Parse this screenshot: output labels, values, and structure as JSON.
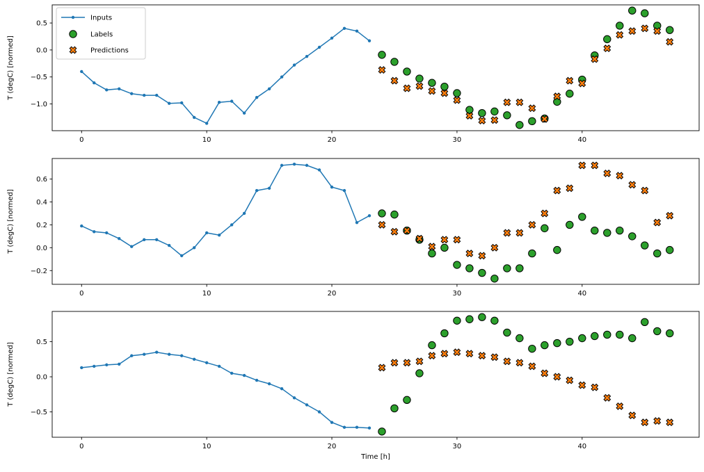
{
  "figure": {
    "xlabel": "Time [h]",
    "ylabel": "T (degC) [normed]",
    "legend": {
      "items": [
        {
          "label": "Inputs",
          "marker": "line-dot",
          "color": "#1f77b4"
        },
        {
          "label": "Labels",
          "marker": "circle",
          "color": "#2ca02c"
        },
        {
          "label": "Predictions",
          "marker": "x",
          "color": "#ff7f0e"
        }
      ]
    },
    "colors": {
      "inputs": "#1f77b4",
      "labels": "#2ca02c",
      "predictions": "#ff7f0e",
      "marker_edge": "#000000",
      "legend_border": "#cccccc"
    }
  },
  "chart_data": [
    {
      "type": "line",
      "title": "",
      "ylabel": "T (degC) [normed]",
      "xlabel": "",
      "xlim": [
        -2.35,
        49.35
      ],
      "xticks": [
        0,
        10,
        20,
        30,
        40
      ],
      "xtick_labels": [
        "0",
        "10",
        "20",
        "30",
        "40"
      ],
      "yticks": [
        0.5,
        0.0,
        -0.5,
        -1.0
      ],
      "ytick_labels": [
        "0.5",
        "0.0",
        "−0.5",
        "−1.0"
      ],
      "series": [
        {
          "name": "Inputs",
          "type": "line",
          "color": "#1f77b4",
          "x": [
            0,
            1,
            2,
            3,
            4,
            5,
            6,
            7,
            8,
            9,
            10,
            11,
            12,
            13,
            14,
            15,
            16,
            17,
            18,
            19,
            20,
            21,
            22,
            23
          ],
          "y": [
            -0.4,
            -0.61,
            -0.74,
            -0.72,
            -0.81,
            -0.84,
            -0.84,
            -0.99,
            -0.98,
            -1.25,
            -1.36,
            -0.97,
            -0.95,
            -1.17,
            -0.88,
            -0.72,
            -0.5,
            -0.28,
            -0.12,
            0.05,
            0.22,
            0.4,
            0.35,
            0.17
          ]
        },
        {
          "name": "Labels",
          "type": "scatter_circle",
          "color": "#2ca02c",
          "x": [
            24,
            25,
            26,
            27,
            28,
            29,
            30,
            31,
            32,
            33,
            34,
            35,
            36,
            37,
            38,
            39,
            40,
            41,
            42,
            43,
            44,
            45,
            46,
            47
          ],
          "y": [
            -0.09,
            -0.22,
            -0.4,
            -0.53,
            -0.61,
            -0.68,
            -0.8,
            -1.11,
            -1.17,
            -1.14,
            -1.21,
            -1.39,
            -1.32,
            -1.27,
            -0.96,
            -0.81,
            -0.55,
            -0.1,
            0.2,
            0.45,
            0.73,
            0.68,
            0.45,
            0.37
          ]
        },
        {
          "name": "Predictions",
          "type": "scatter_x",
          "color": "#ff7f0e",
          "x": [
            24,
            25,
            26,
            27,
            28,
            29,
            30,
            31,
            32,
            33,
            34,
            35,
            36,
            37,
            38,
            39,
            40,
            41,
            42,
            43,
            44,
            45,
            46,
            47
          ],
          "y": [
            -0.37,
            -0.57,
            -0.71,
            -0.67,
            -0.76,
            -0.8,
            -0.93,
            -1.22,
            -1.31,
            -1.3,
            -0.97,
            -0.97,
            -1.08,
            -1.28,
            -0.86,
            -0.57,
            -0.62,
            -0.17,
            0.03,
            0.28,
            0.35,
            0.4,
            0.35,
            0.15
          ]
        }
      ]
    },
    {
      "type": "line",
      "title": "",
      "ylabel": "T (degC) [normed]",
      "xlabel": "",
      "xlim": [
        -2.35,
        49.35
      ],
      "xticks": [
        0,
        10,
        20,
        30,
        40
      ],
      "xtick_labels": [
        "0",
        "10",
        "20",
        "30",
        "40"
      ],
      "yticks": [
        0.6,
        0.4,
        0.2,
        0.0,
        -0.2
      ],
      "ytick_labels": [
        "0.6",
        "0.4",
        "0.2",
        "0.0",
        "−0.2"
      ],
      "series": [
        {
          "name": "Inputs",
          "type": "line",
          "color": "#1f77b4",
          "x": [
            0,
            1,
            2,
            3,
            4,
            5,
            6,
            7,
            8,
            9,
            10,
            11,
            12,
            13,
            14,
            15,
            16,
            17,
            18,
            19,
            20,
            21,
            22,
            23
          ],
          "y": [
            0.19,
            0.14,
            0.13,
            0.08,
            0.01,
            0.07,
            0.07,
            0.02,
            -0.07,
            0.0,
            0.13,
            0.11,
            0.2,
            0.3,
            0.5,
            0.52,
            0.72,
            0.73,
            0.72,
            0.68,
            0.53,
            0.5,
            0.22,
            0.28
          ]
        },
        {
          "name": "Labels",
          "type": "scatter_circle",
          "color": "#2ca02c",
          "x": [
            24,
            25,
            26,
            27,
            28,
            29,
            30,
            31,
            32,
            33,
            34,
            35,
            36,
            37,
            38,
            39,
            40,
            41,
            42,
            43,
            44,
            45,
            46,
            47
          ],
          "y": [
            0.3,
            0.29,
            0.15,
            0.07,
            -0.05,
            0.0,
            -0.15,
            -0.18,
            -0.22,
            -0.27,
            -0.18,
            -0.18,
            -0.05,
            0.17,
            -0.02,
            0.2,
            0.27,
            0.15,
            0.13,
            0.15,
            0.1,
            0.02,
            -0.05,
            -0.02
          ]
        },
        {
          "name": "Predictions",
          "type": "scatter_x",
          "color": "#ff7f0e",
          "x": [
            24,
            25,
            26,
            27,
            28,
            29,
            30,
            31,
            32,
            33,
            34,
            35,
            36,
            37,
            38,
            39,
            40,
            41,
            42,
            43,
            44,
            45,
            46,
            47
          ],
          "y": [
            0.2,
            0.14,
            0.15,
            0.08,
            0.01,
            0.07,
            0.07,
            -0.05,
            -0.07,
            0.0,
            0.13,
            0.13,
            0.2,
            0.3,
            0.5,
            0.52,
            0.72,
            0.72,
            0.65,
            0.63,
            0.55,
            0.5,
            0.22,
            0.28
          ]
        }
      ]
    },
    {
      "type": "line",
      "title": "",
      "ylabel": "T (degC) [normed]",
      "xlabel": "Time [h]",
      "xlim": [
        -2.35,
        49.35
      ],
      "xticks": [
        0,
        10,
        20,
        30,
        40
      ],
      "xtick_labels": [
        "0",
        "10",
        "20",
        "30",
        "40"
      ],
      "yticks": [
        0.5,
        0.0,
        -0.5
      ],
      "ytick_labels": [
        "0.5",
        "0.0",
        "−0.5"
      ],
      "series": [
        {
          "name": "Inputs",
          "type": "line",
          "color": "#1f77b4",
          "x": [
            0,
            1,
            2,
            3,
            4,
            5,
            6,
            7,
            8,
            9,
            10,
            11,
            12,
            13,
            14,
            15,
            16,
            17,
            18,
            19,
            20,
            21,
            22,
            23
          ],
          "y": [
            0.13,
            0.15,
            0.17,
            0.18,
            0.3,
            0.32,
            0.35,
            0.32,
            0.3,
            0.25,
            0.2,
            0.15,
            0.05,
            0.02,
            -0.05,
            -0.1,
            -0.17,
            -0.3,
            -0.4,
            -0.5,
            -0.65,
            -0.72,
            -0.72,
            -0.73
          ]
        },
        {
          "name": "Labels",
          "type": "scatter_circle",
          "color": "#2ca02c",
          "x": [
            24,
            25,
            26,
            27,
            28,
            29,
            30,
            31,
            32,
            33,
            34,
            35,
            36,
            37,
            38,
            39,
            40,
            41,
            42,
            43,
            44,
            45,
            46,
            47
          ],
          "y": [
            -0.78,
            -0.45,
            -0.33,
            0.05,
            0.45,
            0.62,
            0.8,
            0.82,
            0.85,
            0.8,
            0.63,
            0.55,
            0.4,
            0.45,
            0.48,
            0.5,
            0.55,
            0.58,
            0.6,
            0.6,
            0.55,
            0.78,
            0.65,
            0.62
          ]
        },
        {
          "name": "Predictions",
          "type": "scatter_x",
          "color": "#ff7f0e",
          "x": [
            24,
            25,
            26,
            27,
            28,
            29,
            30,
            31,
            32,
            33,
            34,
            35,
            36,
            37,
            38,
            39,
            40,
            41,
            42,
            43,
            44,
            45,
            46,
            47
          ],
          "y": [
            0.13,
            0.2,
            0.2,
            0.22,
            0.3,
            0.33,
            0.35,
            0.33,
            0.3,
            0.28,
            0.22,
            0.2,
            0.15,
            0.05,
            0.0,
            -0.05,
            -0.12,
            -0.15,
            -0.3,
            -0.42,
            -0.55,
            -0.65,
            -0.63,
            -0.65
          ]
        }
      ]
    }
  ]
}
